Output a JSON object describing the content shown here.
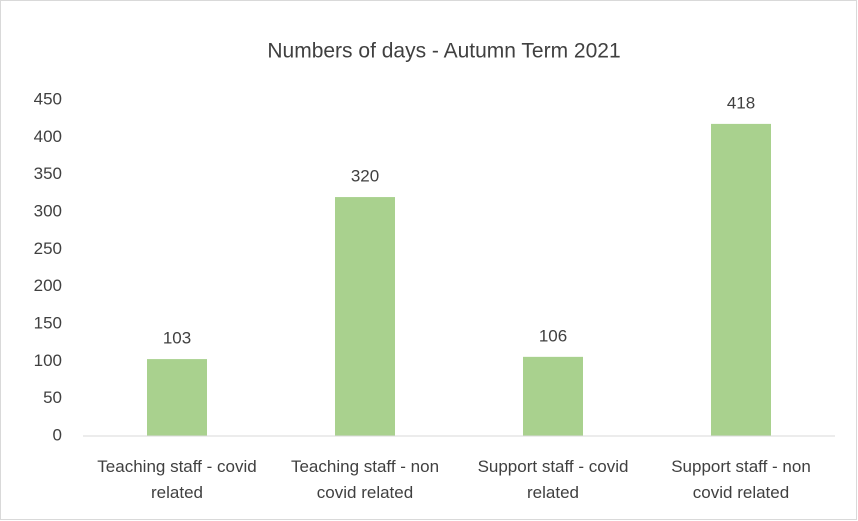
{
  "chart_data": {
    "type": "bar",
    "title": "Numbers of days - Autumn Term 2021",
    "categories": [
      "Teaching staff - covid related",
      "Teaching staff - non covid related",
      "Support staff - covid related",
      "Support staff - non covid related"
    ],
    "values": [
      103,
      320,
      106,
      418
    ],
    "color": "#a9d18e",
    "ylim": [
      0,
      450
    ],
    "yticks": [
      0,
      50,
      100,
      150,
      200,
      250,
      300,
      350,
      400,
      450
    ],
    "grid": false
  }
}
